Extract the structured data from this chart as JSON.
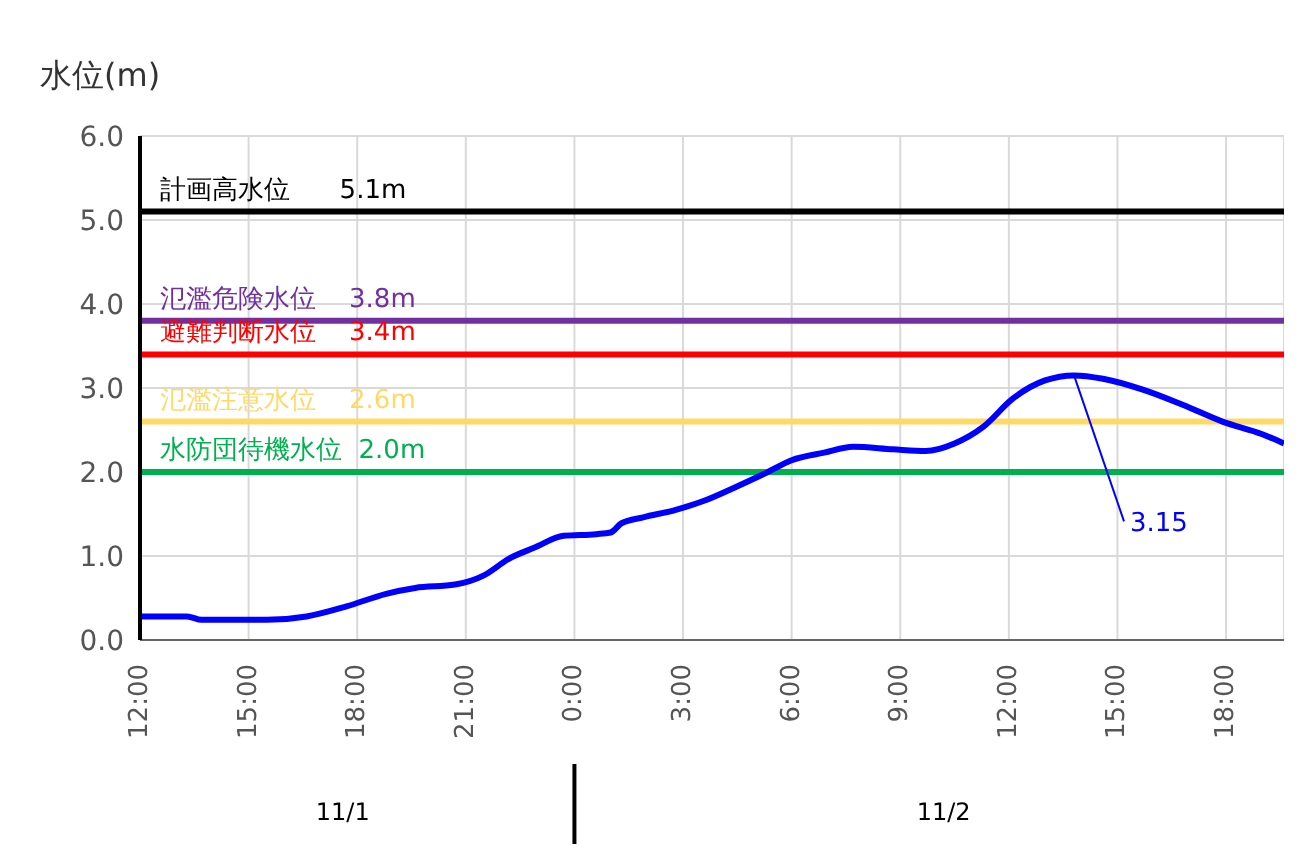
{
  "chart_data": {
    "type": "line",
    "ylabel": "水位(m)",
    "x": [
      "--11-01T12:00",
      "--11-01T13:18",
      "--11-01T13:42",
      "--11-01T15:30",
      "--11-01T16:36",
      "--11-01T17:42",
      "--11-01T18:48",
      "--11-01T19:36",
      "--11-01T20:42",
      "--11-01T21:30",
      "--11-01T22:12",
      "--11-01T22:54",
      "--11-01T23:42",
      "--11-02T00:36",
      "--11-02T01:00",
      "--11-02T01:18",
      "--11-02T01:54",
      "--11-02T02:48",
      "--11-02T03:36",
      "--11-02T04:24",
      "--11-02T05:18",
      "--11-02T06:00",
      "--11-02T06:54",
      "--11-02T07:42",
      "--11-02T08:48",
      "--11-02T09:42",
      "--11-02T10:30",
      "--11-02T11:18",
      "--11-02T12:06",
      "--11-02T13:00",
      "--11-02T13:48",
      "--11-02T14:36",
      "--11-02T15:42",
      "--11-02T16:48",
      "--11-02T17:54",
      "--11-02T19:00",
      "--11-02T19:36"
    ],
    "series": [
      {
        "color": "#0000ff",
        "values": [
          0.28,
          0.28,
          0.24,
          0.24,
          0.28,
          0.4,
          0.55,
          0.62,
          0.66,
          0.77,
          0.97,
          1.1,
          1.24,
          1.26,
          1.28,
          1.39,
          1.46,
          1.55,
          1.66,
          1.81,
          1.99,
          2.14,
          2.23,
          2.3,
          2.27,
          2.25,
          2.34,
          2.54,
          2.87,
          3.09,
          3.15,
          3.11,
          2.98,
          2.8,
          2.6,
          2.45,
          2.34
        ]
      }
    ],
    "xlim": [
      "--11-01T12:00",
      "--11-02T19:36"
    ],
    "xticks": [
      {
        "value": "--11-01T12:00",
        "label": "12:00"
      },
      {
        "value": "--11-01T15:00",
        "label": "15:00"
      },
      {
        "value": "--11-01T18:00",
        "label": "18:00"
      },
      {
        "value": "--11-01T21:00",
        "label": "21:00"
      },
      {
        "value": "--11-02T00:00",
        "label": "0:00"
      },
      {
        "value": "--11-02T03:00",
        "label": "3:00"
      },
      {
        "value": "--11-02T06:00",
        "label": "6:00"
      },
      {
        "value": "--11-02T09:00",
        "label": "9:00"
      },
      {
        "value": "--11-02T12:00",
        "label": "12:00"
      },
      {
        "value": "--11-02T15:00",
        "label": "15:00"
      },
      {
        "value": "--11-02T18:00",
        "label": "18:00"
      }
    ],
    "x2lim": [
      "--11-01T12:00",
      "--11-02T19:36"
    ],
    "x2ticks": [
      {
        "value": "--11-01T17:36",
        "label": "11/1"
      },
      {
        "value": "--11-02T00:00",
        "label": null
      },
      {
        "value": "--11-02T10:12",
        "label": "11/2"
      }
    ],
    "ylim": [
      0,
      6
    ],
    "yticks": [
      {
        "value": 0,
        "label": "0.0"
      },
      {
        "value": 1,
        "label": "1.0"
      },
      {
        "value": 2,
        "label": "2.0"
      },
      {
        "value": 3,
        "label": "3.0"
      },
      {
        "value": 4,
        "label": "4.0"
      },
      {
        "value": 5,
        "label": "5.0"
      },
      {
        "value": 6,
        "label": "6.0"
      }
    ],
    "ref_lines": [
      {
        "axis": "y",
        "value": 5.1,
        "label": "計画高水位      5.1m",
        "color": "#000000"
      },
      {
        "axis": "y",
        "value": 3.8,
        "label": "氾濫危険水位    3.8m",
        "color": "#7030a0"
      },
      {
        "axis": "y",
        "value": 3.4,
        "label": "避難判断水位    3.4m",
        "color": "#ff0000"
      },
      {
        "axis": "y",
        "value": 2.6,
        "label": "氾濫注意水位    2.6m",
        "color": "#ffd966"
      },
      {
        "axis": "y",
        "value": 2,
        "label": "水防団待機水位  2.0m",
        "color": "#00b050"
      }
    ],
    "annotations": [
      {
        "text": "3.15",
        "x": "--11-02T13:48",
        "y": 3.15
      }
    ],
    "grid": true,
    "legend": false,
    "marker": "none",
    "line_style": "solid"
  }
}
